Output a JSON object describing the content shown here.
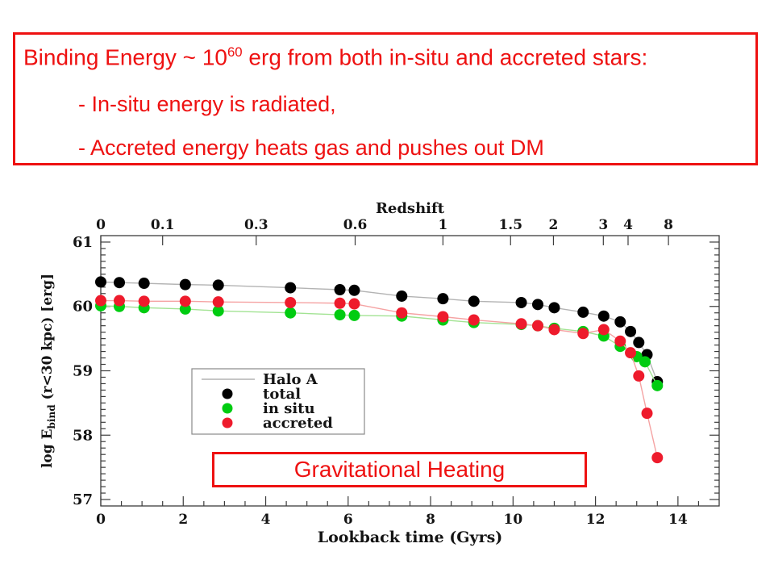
{
  "slide": {
    "background": "#ffffff",
    "accent_red": "#ee1111",
    "top_box": {
      "title_pre": "Binding Energy ~ 10",
      "title_sup": "60",
      "title_post": " erg from both in-situ and accreted stars:",
      "bullets": [
        "- In-situ energy is radiated,",
        "- Accreted energy heats gas and pushes out DM"
      ]
    },
    "callout": {
      "label": "Gravitational Heating"
    }
  },
  "chart_data": {
    "type": "scatter",
    "title": "",
    "top_axis_label": "Redshift",
    "xlabel": "Lookback time (Gyrs)",
    "ylabel_pre": "log E",
    "ylabel_sub": "bind",
    "ylabel_post": " (r<30 kpc)  [erg]",
    "xlim": [
      0,
      15
    ],
    "ylim": [
      56.9,
      61.1
    ],
    "grid": false,
    "frame_color": "#3c3c3c",
    "text_color": "#141414",
    "x_major_ticks": [
      0,
      2,
      4,
      6,
      8,
      10,
      12,
      14
    ],
    "x_minor_step": 0.5,
    "y_major_ticks": [
      57,
      58,
      59,
      60,
      61
    ],
    "y_minor_step": 0.1,
    "top_axis_ticks": [
      {
        "label": "0",
        "t": 0.0
      },
      {
        "label": "0.1",
        "t": 1.5
      },
      {
        "label": "0.3",
        "t": 3.77
      },
      {
        "label": "0.6",
        "t": 6.17
      },
      {
        "label": "1",
        "t": 8.3
      },
      {
        "label": "1.5",
        "t": 9.94
      },
      {
        "label": "2",
        "t": 10.98
      },
      {
        "label": "3",
        "t": 12.19
      },
      {
        "label": "4",
        "t": 12.79
      },
      {
        "label": "8",
        "t": 13.77
      }
    ],
    "legend": {
      "position": "inside-left",
      "entries": [
        {
          "label": "Halo A",
          "type": "line",
          "color": "#b3b3b3"
        },
        {
          "label": "total",
          "type": "dot",
          "color": "#000000"
        },
        {
          "label": "in situ",
          "type": "dot",
          "color": "#00cc11"
        },
        {
          "label": "accreted",
          "type": "dot",
          "color": "#ee1b2c"
        }
      ]
    },
    "series": [
      {
        "name": "total",
        "dot_color": "#000000",
        "line_color": "#b3b3b3",
        "points": [
          [
            0,
            60.38
          ],
          [
            0.45,
            60.37
          ],
          [
            1.05,
            60.36
          ],
          [
            2.05,
            60.34
          ],
          [
            2.85,
            60.33
          ],
          [
            4.6,
            60.29
          ],
          [
            5.8,
            60.26
          ],
          [
            6.15,
            60.25
          ],
          [
            7.3,
            60.16
          ],
          [
            8.3,
            60.12
          ],
          [
            9.05,
            60.08
          ],
          [
            10.2,
            60.06
          ],
          [
            10.6,
            60.03
          ],
          [
            11,
            59.98
          ],
          [
            11.7,
            59.91
          ],
          [
            12.2,
            59.85
          ],
          [
            12.6,
            59.76
          ],
          [
            12.85,
            59.61
          ],
          [
            13.05,
            59.44
          ],
          [
            13.25,
            59.25
          ],
          [
            13.5,
            58.83
          ]
        ]
      },
      {
        "name": "in situ",
        "dot_color": "#00cc11",
        "line_color": "#a2e393",
        "points": [
          [
            0,
            60.01
          ],
          [
            0.45,
            60
          ],
          [
            1.05,
            59.98
          ],
          [
            2.05,
            59.96
          ],
          [
            2.85,
            59.93
          ],
          [
            4.6,
            59.9
          ],
          [
            5.8,
            59.87
          ],
          [
            6.15,
            59.86
          ],
          [
            7.3,
            59.85
          ],
          [
            8.3,
            59.79
          ],
          [
            9.05,
            59.75
          ],
          [
            10.2,
            59.72
          ],
          [
            10.6,
            59.7
          ],
          [
            11,
            59.66
          ],
          [
            11.7,
            59.61
          ],
          [
            12.2,
            59.54
          ],
          [
            12.6,
            59.38
          ],
          [
            13,
            59.22
          ],
          [
            13.2,
            59.14
          ],
          [
            13.5,
            58.77
          ]
        ]
      },
      {
        "name": "accreted",
        "dot_color": "#ee1b2c",
        "line_color": "#f5a3a3",
        "points": [
          [
            0,
            60.09
          ],
          [
            0.45,
            60.09
          ],
          [
            1.05,
            60.08
          ],
          [
            2.05,
            60.08
          ],
          [
            2.85,
            60.07
          ],
          [
            4.6,
            60.06
          ],
          [
            5.8,
            60.05
          ],
          [
            6.15,
            60.04
          ],
          [
            7.3,
            59.9
          ],
          [
            8.3,
            59.84
          ],
          [
            9.05,
            59.79
          ],
          [
            10.2,
            59.73
          ],
          [
            10.6,
            59.7
          ],
          [
            11,
            59.64
          ],
          [
            11.7,
            59.58
          ],
          [
            12.2,
            59.64
          ],
          [
            12.6,
            59.46
          ],
          [
            12.85,
            59.28
          ],
          [
            13.05,
            58.92
          ],
          [
            13.25,
            58.34
          ],
          [
            13.5,
            57.65
          ]
        ]
      }
    ]
  }
}
